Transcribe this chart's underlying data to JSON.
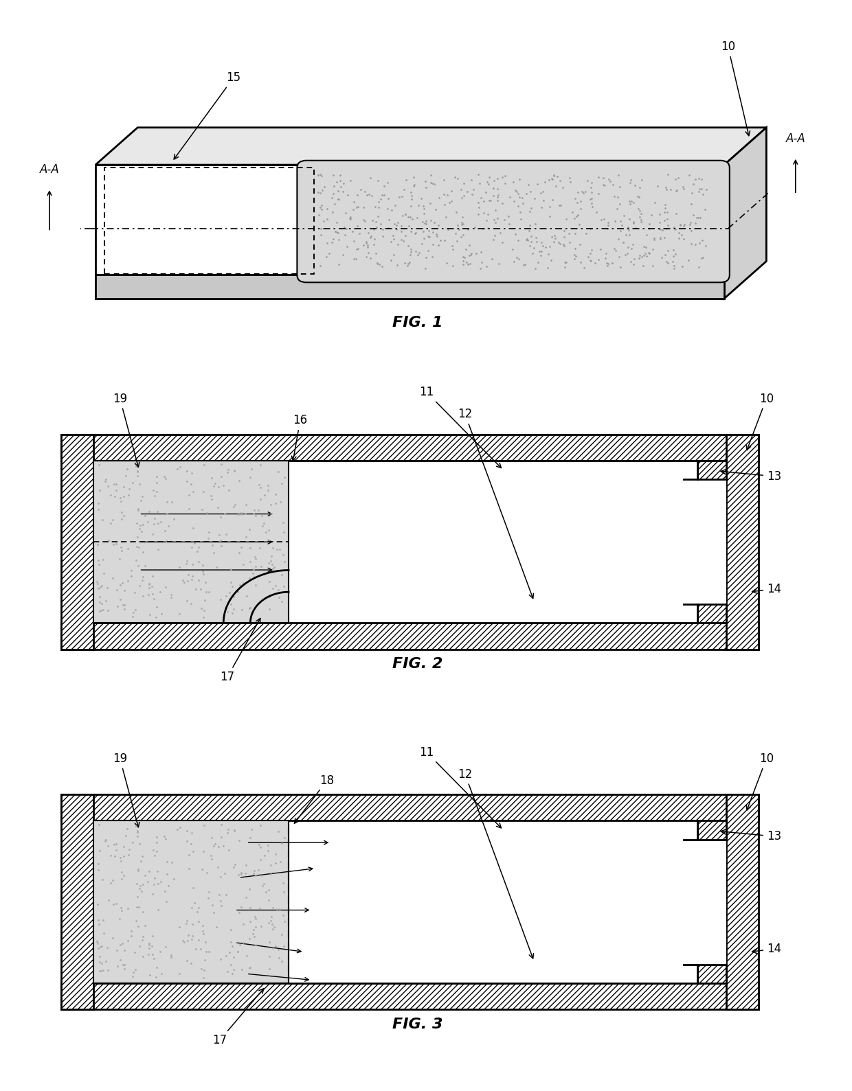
{
  "fig_width": 12.4,
  "fig_height": 15.89,
  "background_color": "#ffffff",
  "label_fontsize": 12,
  "fig_label_fontsize": 15,
  "fig_titles": [
    "FIG. 1",
    "FIG. 2",
    "FIG. 3"
  ]
}
